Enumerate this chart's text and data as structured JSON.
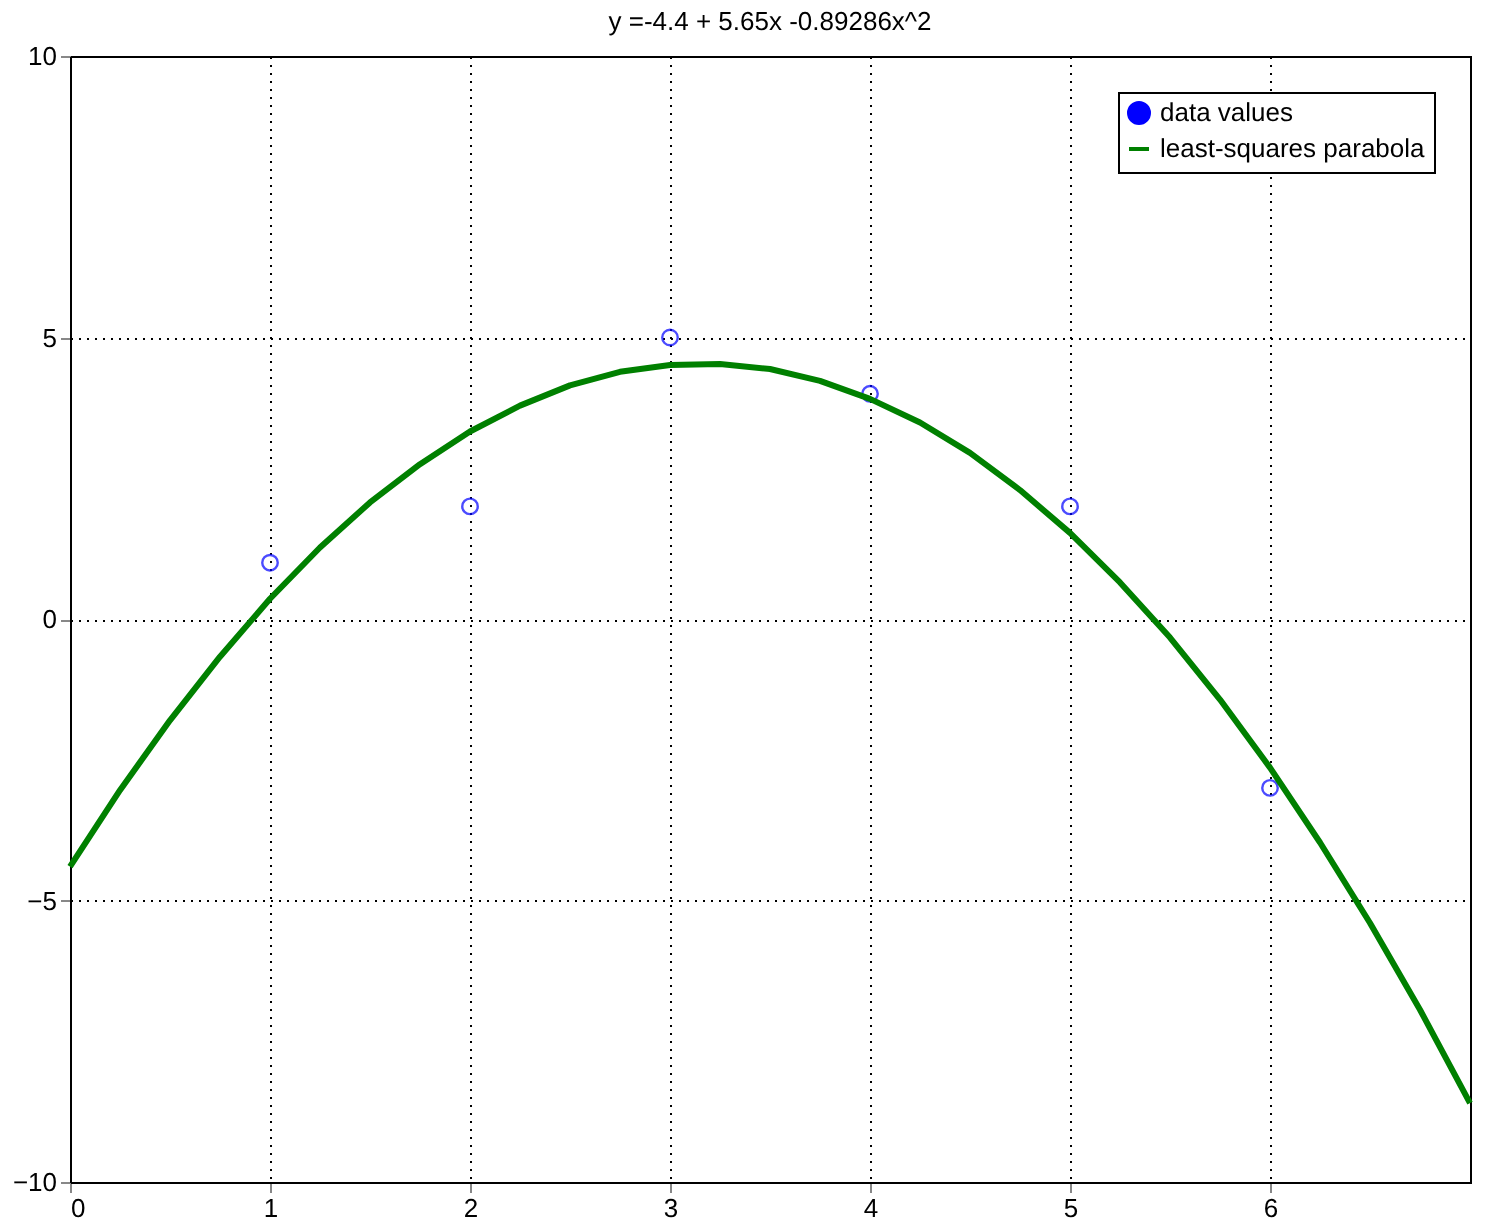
{
  "chart_data": {
    "type": "scatter",
    "title": "y =-4.4 + 5.65x -0.89286x^2",
    "xlim": [
      0,
      7
    ],
    "xticks": [
      0,
      1,
      2,
      3,
      4,
      5,
      6
    ],
    "ylim": [
      -10,
      10
    ],
    "yticks": [
      -10,
      -5,
      0,
      5,
      10
    ],
    "grid": true,
    "legend": "top right",
    "series": [
      {
        "name": "data values",
        "marker": "circle",
        "color": "#0000ff",
        "x": [
          1,
          2,
          3,
          4,
          5,
          6
        ],
        "values": [
          1,
          2,
          5,
          4,
          2,
          -3
        ]
      },
      {
        "name": "least-squares parabola",
        "type": "line",
        "marker": "none",
        "line_style": "solid",
        "color": "#008000",
        "x": [
          0,
          0.25,
          0.5,
          0.75,
          1,
          1.25,
          1.5,
          1.75,
          2,
          2.25,
          2.5,
          2.75,
          3,
          3.25,
          3.5,
          3.75,
          4,
          4.25,
          4.5,
          4.75,
          5,
          5.25,
          5.5,
          5.75,
          6,
          6.25,
          6.5,
          6.75,
          7
        ],
        "values": [
          -4.4,
          -3.04,
          -1.8,
          -0.67,
          0.36,
          1.27,
          2.07,
          2.75,
          3.33,
          3.79,
          4.15,
          4.39,
          4.51,
          4.53,
          4.44,
          4.23,
          3.91,
          3.49,
          2.95,
          2.29,
          1.53,
          0.65,
          -0.33,
          -1.43,
          -2.64,
          -3.97,
          -5.4,
          -6.94,
          -8.6
        ]
      }
    ]
  }
}
